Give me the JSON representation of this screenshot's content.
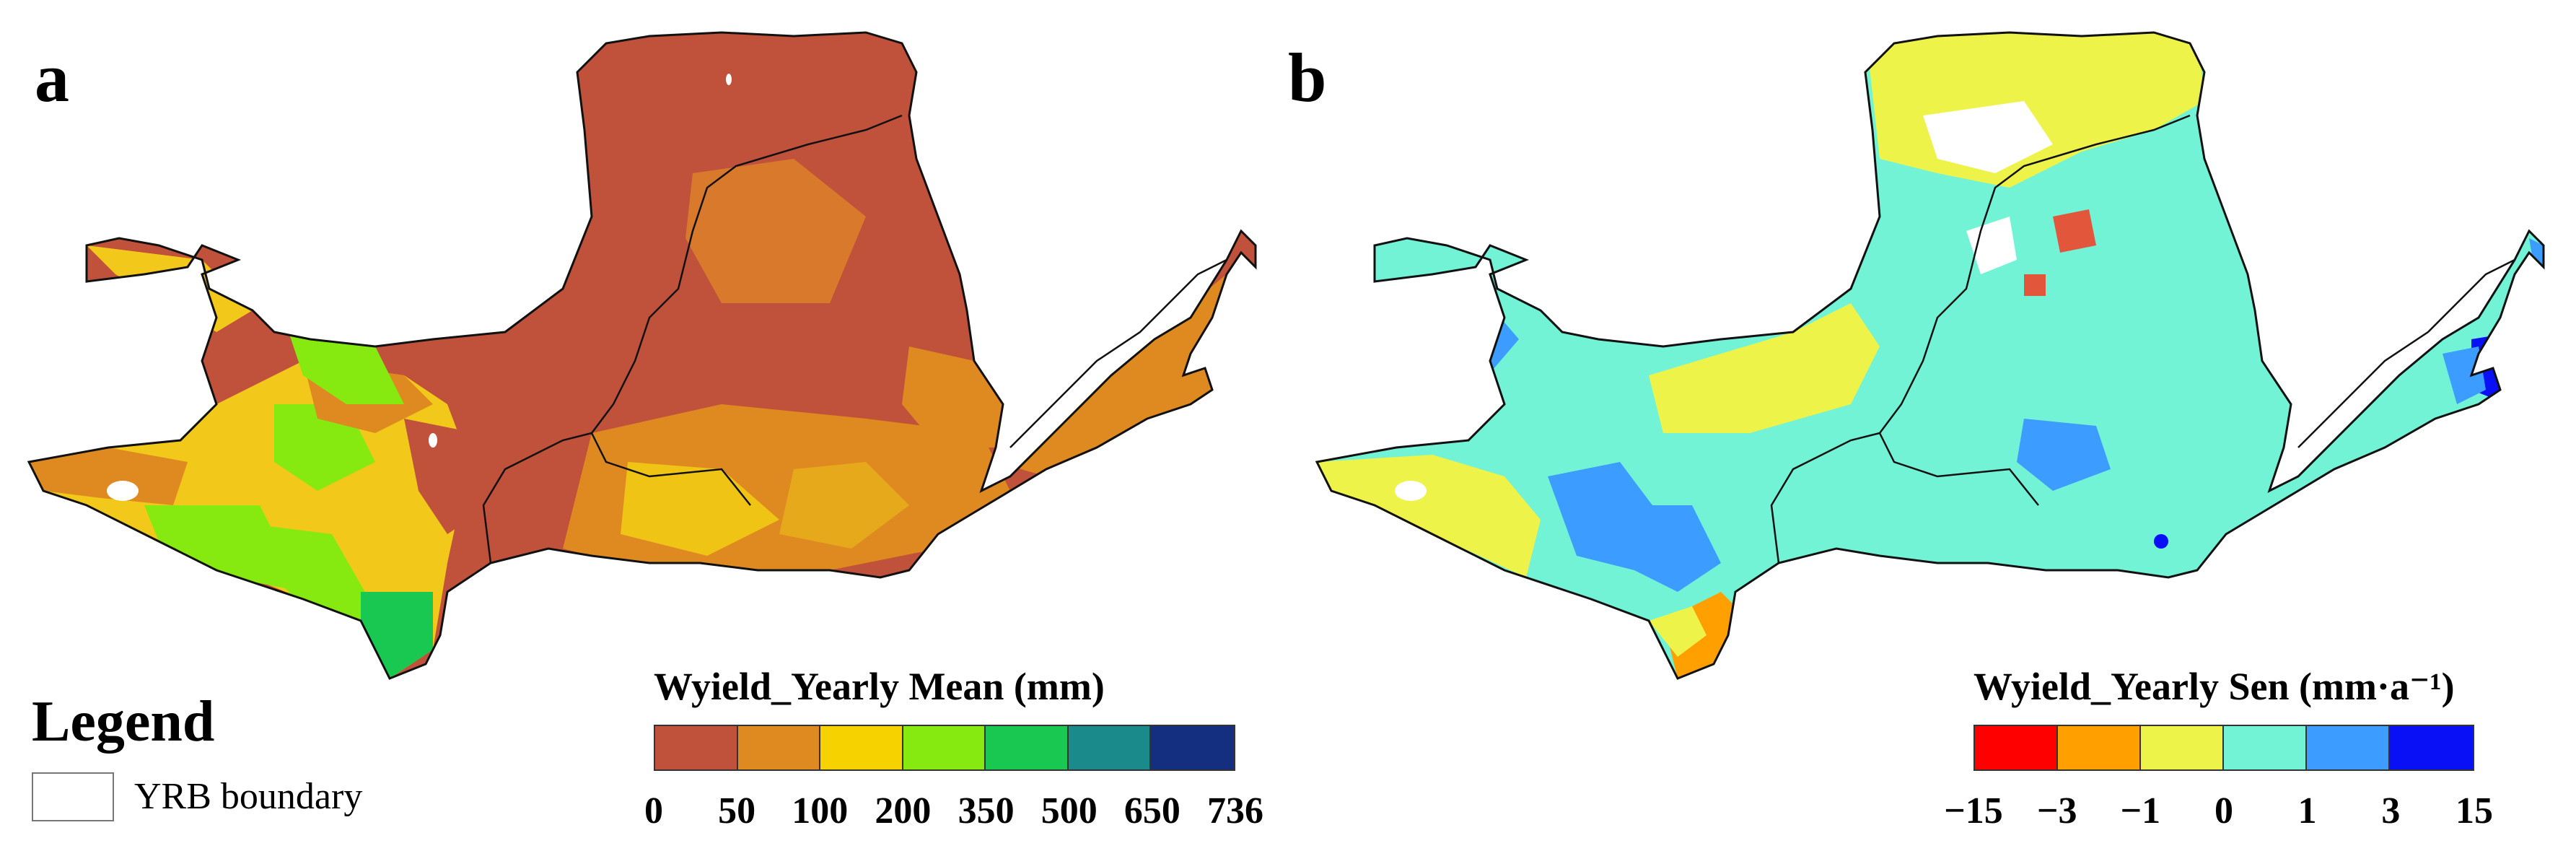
{
  "panels": {
    "a": {
      "letter": "a",
      "scale_title": "Wyield_Yearly Mean (mm)",
      "colors": [
        "#c0523c",
        "#df8a20",
        "#f5d200",
        "#86ea10",
        "#18c850",
        "#1a8a8a",
        "#142e80"
      ],
      "ticks": [
        "0",
        "50",
        "100",
        "200",
        "350",
        "500",
        "650",
        "736"
      ]
    },
    "b": {
      "letter": "b",
      "scale_title": "Wyield_Yearly Sen (mm·a⁻¹)",
      "colors": [
        "#ff0000",
        "#ff9f00",
        "#eef34a",
        "#72f3d6",
        "#3d9cff",
        "#0a10f5"
      ],
      "ticks": [
        "−15",
        "−3",
        "−1",
        "0",
        "1",
        "3",
        "15"
      ]
    }
  },
  "legend": {
    "title": "Legend",
    "item_label": "YRB boundary"
  }
}
